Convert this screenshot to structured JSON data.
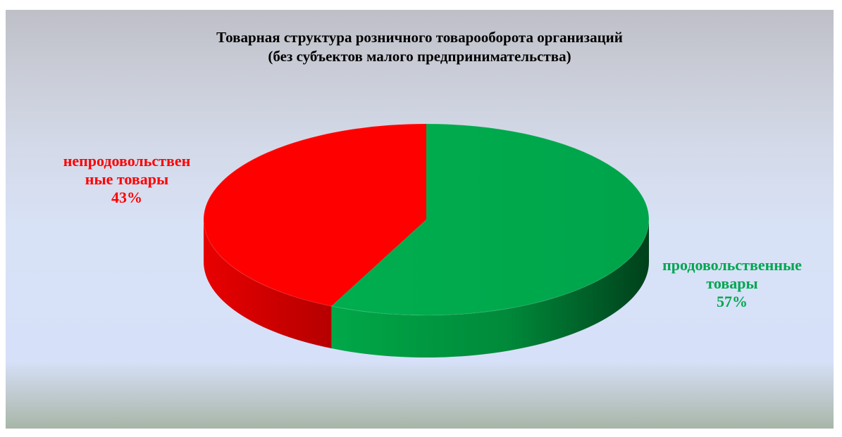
{
  "chart_data": {
    "type": "pie",
    "title": [
      "Товарная структура розничного товарооборота организаций",
      "(без субъектов малого предпринимательства)"
    ],
    "slices": [
      {
        "label_lines": [
          "продовольственные",
          "товары"
        ],
        "value": 57,
        "percent_label": "57%",
        "color": "#00b050"
      },
      {
        "label_lines": [
          "непродовольствен",
          "ные товары"
        ],
        "value": 43,
        "percent_label": "43%",
        "color": "#ff0000"
      }
    ],
    "style": "3d",
    "legend": "none"
  }
}
